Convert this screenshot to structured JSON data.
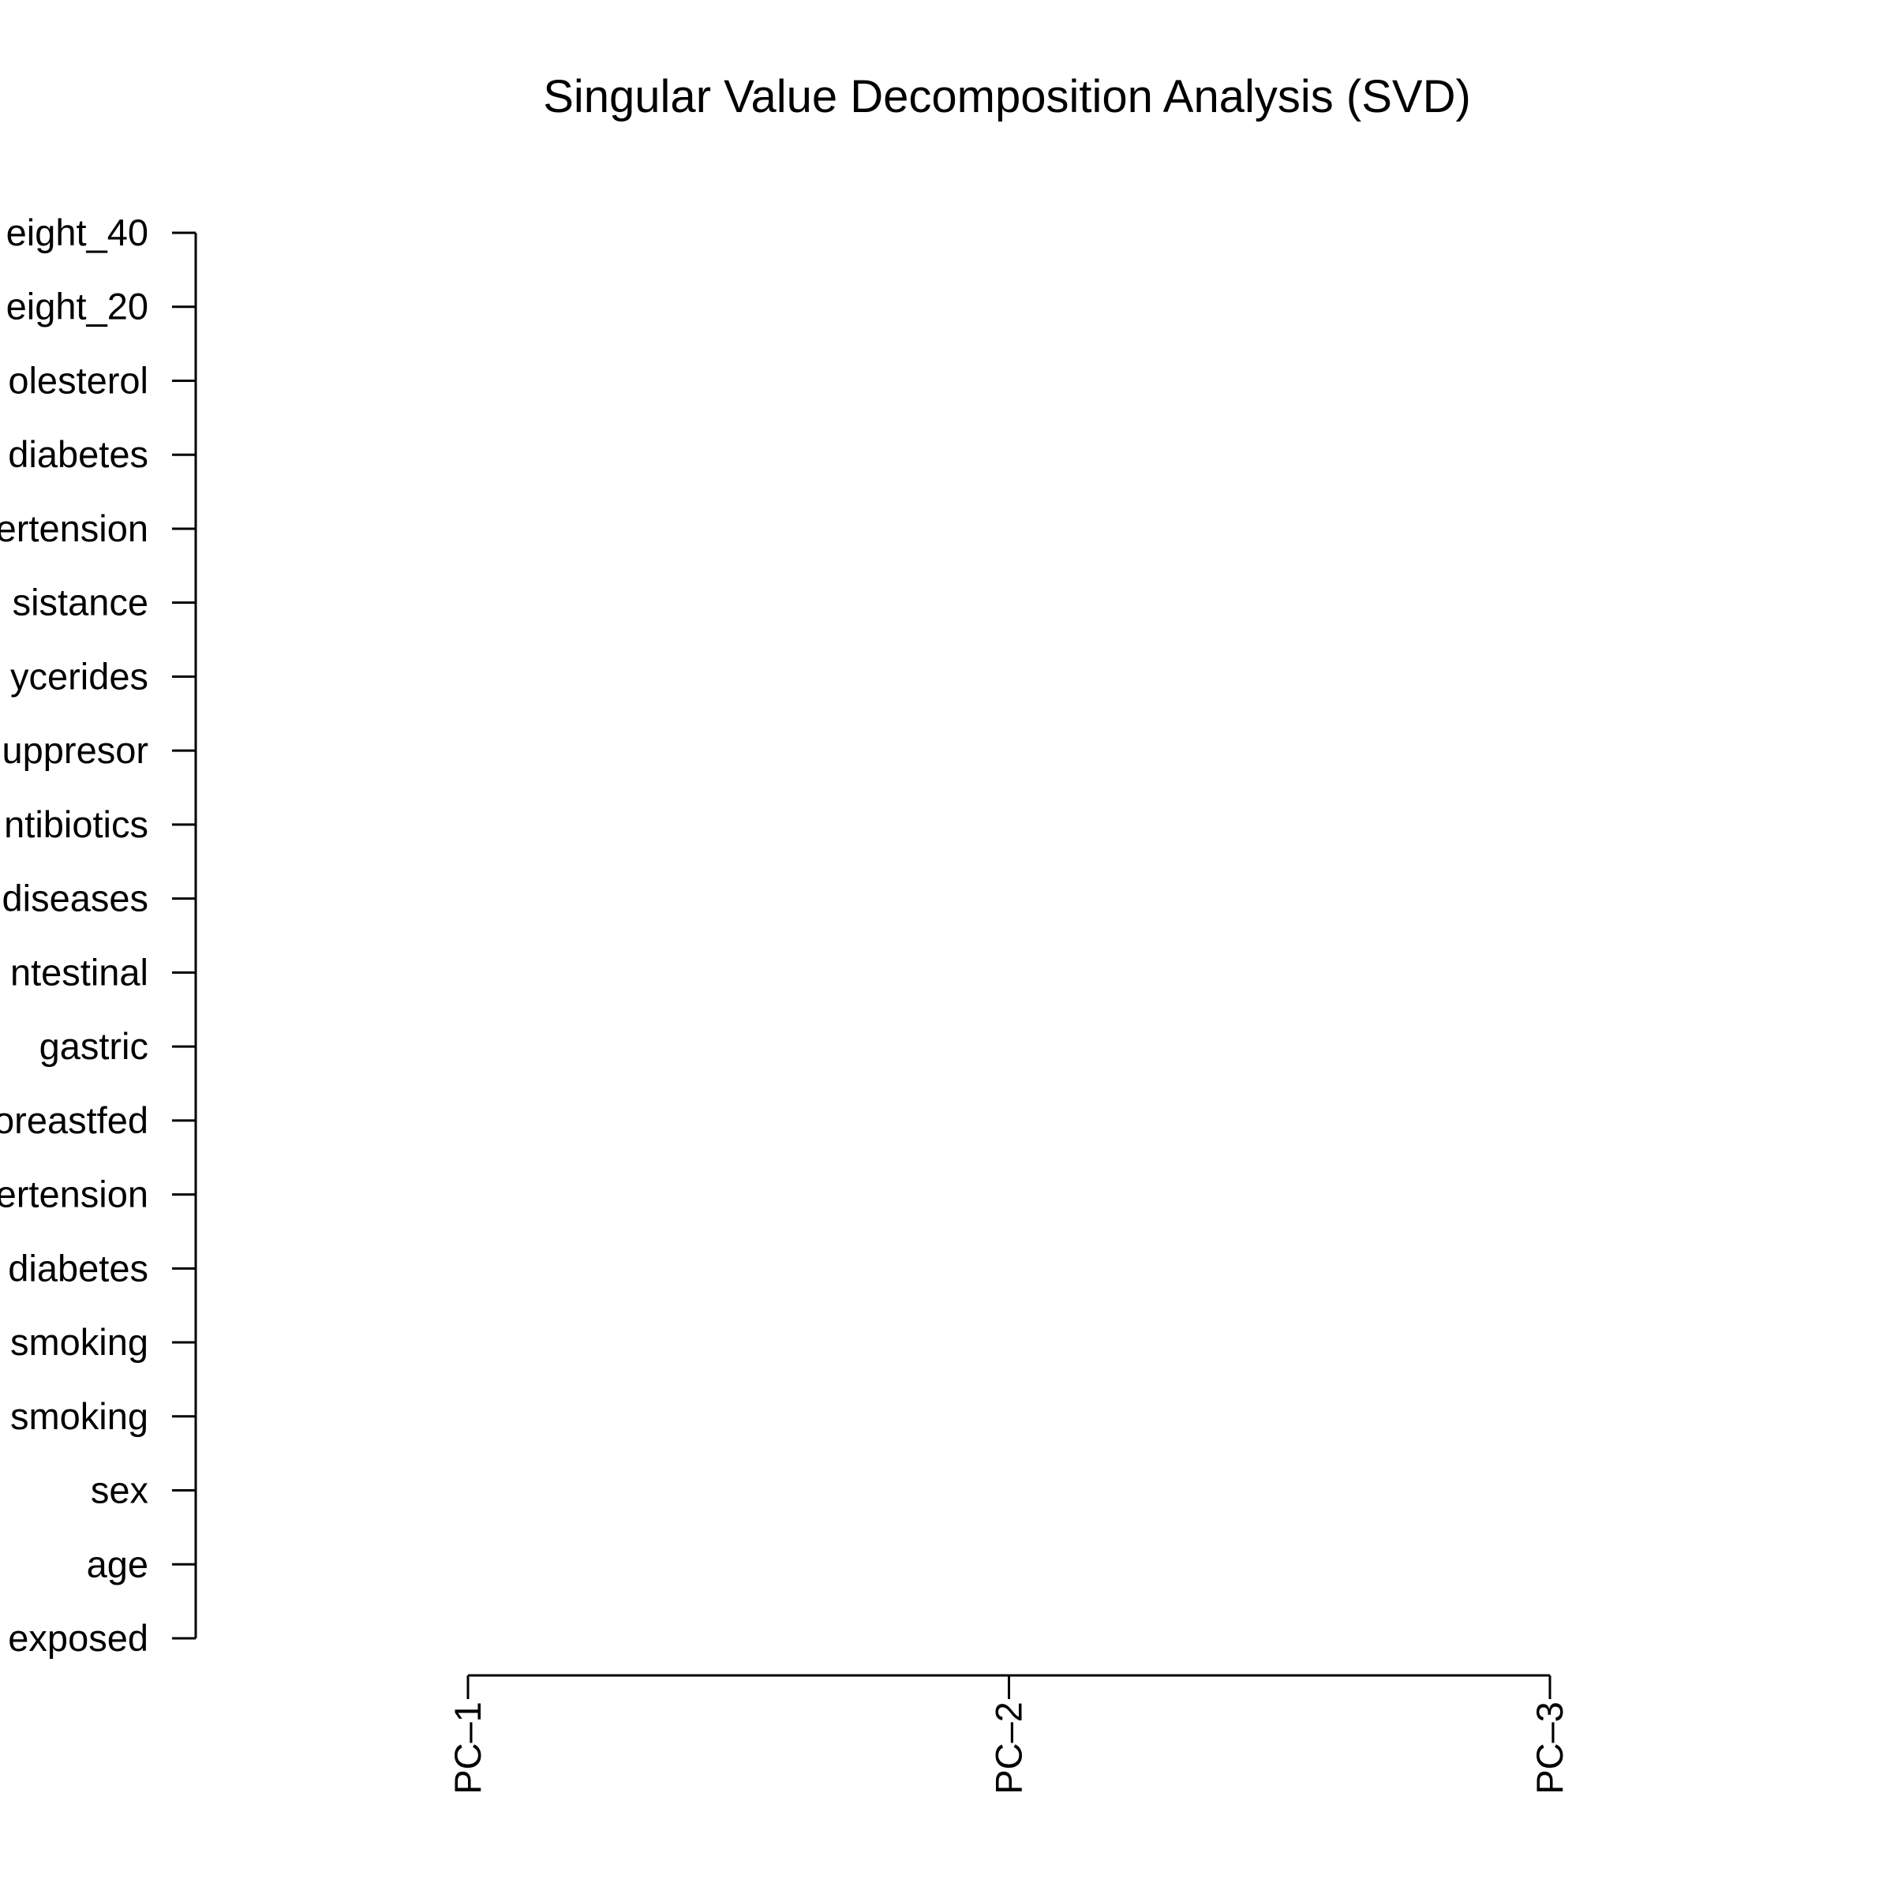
{
  "chart_data": {
    "type": "heatmap",
    "title": "Singular Value Decomposition Analysis (SVD)",
    "xlabel": "",
    "ylabel": "",
    "x_categories": [
      "PC–1",
      "PC–2",
      "PC–3"
    ],
    "y_categories": [
      "exposed",
      "age",
      "sex",
      "smoking",
      "smoking",
      "diabetes",
      "ertension",
      "oreastfed",
      "gastric",
      "ntestinal",
      "diseases",
      "ntibiotics",
      "uppresor",
      "ycerides",
      "sistance",
      "ertension",
      "diabetes",
      "olesterol",
      "eight_20",
      "eight_40"
    ],
    "grid": false,
    "legend": "none",
    "colors": {
      "axis": "#000000",
      "text": "#000000",
      "background": "#ffffff"
    }
  }
}
